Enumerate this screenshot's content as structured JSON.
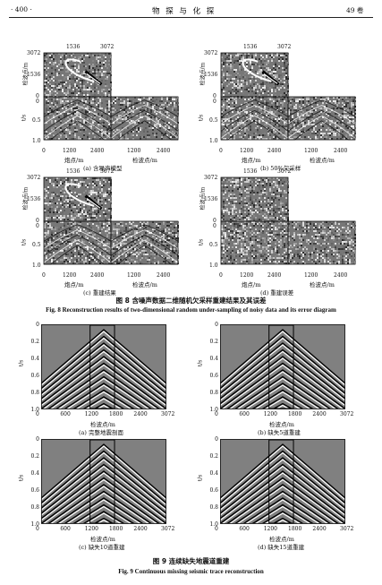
{
  "header": {
    "page_number": "· 400 ·",
    "journal_title": "物 探 与 化 探",
    "volume": "49 卷"
  },
  "figure8": {
    "ticks_top": [
      "1536",
      "3072"
    ],
    "ticks_left": [
      "3072",
      "1536",
      "0"
    ],
    "ticks_time": [
      "0",
      "0.5",
      "1.0"
    ],
    "ylabel_receiver": "检波点/m",
    "ylabel_time": "t/s",
    "xticks_shot": [
      "0",
      "1200",
      "2400"
    ],
    "xticks_receiver": [
      "1200",
      "2400"
    ],
    "xlabel_shot": "炮点/m",
    "xlabel_receiver": "检波点/m",
    "panel_a": "(a) 含噪声模型",
    "panel_b": "(b) 50%欠采样",
    "panel_c": "(c) 重建结果",
    "panel_d": "(d) 重建误差",
    "caption_cn": "图 8    含噪声数据二维随机欠采样重建结果及其误差",
    "caption_en": "Fig. 8    Reconstruction results of two-dimensional random under-sampling of noisy data and its error diagram"
  },
  "figure9": {
    "yticks": [
      "0",
      "0.2",
      "0.4",
      "0.6",
      "0.8",
      "1.0"
    ],
    "xticks": [
      "0",
      "600",
      "1200",
      "1800",
      "2400",
      "3072"
    ],
    "ylabel": "t/s",
    "xlabel": "检波点/m",
    "panel_a": "(a) 完整地震剖面",
    "panel_b": "(b) 缺失5道重建",
    "panel_c": "(c) 缺失10道重建",
    "panel_d": "(d) 缺失15道重建",
    "caption_cn": "图 9    连续缺失地震道重建",
    "caption_en": "Fig. 9    Continuous missing seismic trace reconstruction"
  }
}
